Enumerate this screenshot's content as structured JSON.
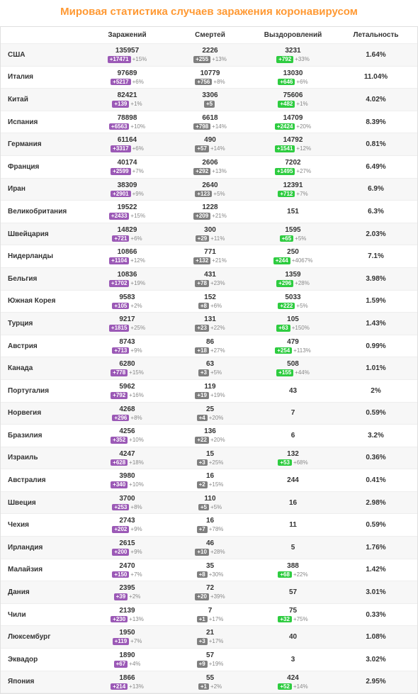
{
  "title": "Мировая статистика случаев заражения коронавирусом",
  "headers": {
    "country": "",
    "infected": "Заражений",
    "deaths": "Смертей",
    "recovered": "Выздоровлений",
    "lethality": "Летальность"
  },
  "colors": {
    "title": "#ff9933",
    "badge_infected": "#9b59b6",
    "badge_deaths": "#7f7f7f",
    "badge_recovered": "#2ecc40",
    "row_alt_bg": "#f7f7f7",
    "border": "#e0e0e0"
  },
  "rows": [
    {
      "country": "США",
      "infected": {
        "v": "135957",
        "d": "+17471",
        "p": "+15%"
      },
      "deaths": {
        "v": "2226",
        "d": "+255",
        "p": "+13%"
      },
      "recovered": {
        "v": "3231",
        "d": "+792",
        "p": "+33%"
      },
      "lethality": "1.64%"
    },
    {
      "country": "Италия",
      "infected": {
        "v": "97689",
        "d": "+5217",
        "p": "+6%"
      },
      "deaths": {
        "v": "10779",
        "d": "+756",
        "p": "+8%"
      },
      "recovered": {
        "v": "13030",
        "d": "+646",
        "p": "+6%"
      },
      "lethality": "11.04%"
    },
    {
      "country": "Китай",
      "infected": {
        "v": "82421",
        "d": "+139",
        "p": "+1%"
      },
      "deaths": {
        "v": "3306",
        "d": "+5",
        "p": ""
      },
      "recovered": {
        "v": "75606",
        "d": "+482",
        "p": "+1%"
      },
      "lethality": "4.02%"
    },
    {
      "country": "Испания",
      "infected": {
        "v": "78898",
        "d": "+6563",
        "p": "+10%"
      },
      "deaths": {
        "v": "6618",
        "d": "+798",
        "p": "+14%"
      },
      "recovered": {
        "v": "14709",
        "d": "+2424",
        "p": "+20%"
      },
      "lethality": "8.39%"
    },
    {
      "country": "Германия",
      "infected": {
        "v": "61164",
        "d": "+3317",
        "p": "+6%"
      },
      "deaths": {
        "v": "490",
        "d": "+57",
        "p": "+14%"
      },
      "recovered": {
        "v": "14792",
        "d": "+1541",
        "p": "+12%"
      },
      "lethality": "0.81%"
    },
    {
      "country": "Франция",
      "infected": {
        "v": "40174",
        "d": "+2599",
        "p": "+7%"
      },
      "deaths": {
        "v": "2606",
        "d": "+292",
        "p": "+13%"
      },
      "recovered": {
        "v": "7202",
        "d": "+1495",
        "p": "+27%"
      },
      "lethality": "6.49%"
    },
    {
      "country": "Иран",
      "infected": {
        "v": "38309",
        "d": "+2901",
        "p": "+9%"
      },
      "deaths": {
        "v": "2640",
        "d": "+123",
        "p": "+5%"
      },
      "recovered": {
        "v": "12391",
        "d": "+712",
        "p": "+7%"
      },
      "lethality": "6.9%"
    },
    {
      "country": "Великобритания",
      "infected": {
        "v": "19522",
        "d": "+2433",
        "p": "+15%"
      },
      "deaths": {
        "v": "1228",
        "d": "+209",
        "p": "+21%"
      },
      "recovered": {
        "v": "151"
      },
      "lethality": "6.3%"
    },
    {
      "country": "Швейцария",
      "infected": {
        "v": "14829",
        "d": "+721",
        "p": "+6%"
      },
      "deaths": {
        "v": "300",
        "d": "+29",
        "p": "+11%"
      },
      "recovered": {
        "v": "1595",
        "d": "+65",
        "p": "+5%"
      },
      "lethality": "2.03%"
    },
    {
      "country": "Нидерланды",
      "infected": {
        "v": "10866",
        "d": "+1104",
        "p": "+12%"
      },
      "deaths": {
        "v": "771",
        "d": "+132",
        "p": "+21%"
      },
      "recovered": {
        "v": "250",
        "d": "+244",
        "p": "+4067%"
      },
      "lethality": "7.1%"
    },
    {
      "country": "Бельгия",
      "infected": {
        "v": "10836",
        "d": "+1702",
        "p": "+19%"
      },
      "deaths": {
        "v": "431",
        "d": "+78",
        "p": "+23%"
      },
      "recovered": {
        "v": "1359",
        "d": "+296",
        "p": "+28%"
      },
      "lethality": "3.98%"
    },
    {
      "country": "Южная Корея",
      "infected": {
        "v": "9583",
        "d": "+105",
        "p": "+2%"
      },
      "deaths": {
        "v": "152",
        "d": "+8",
        "p": "+6%"
      },
      "recovered": {
        "v": "5033",
        "d": "+222",
        "p": "+5%"
      },
      "lethality": "1.59%"
    },
    {
      "country": "Турция",
      "infected": {
        "v": "9217",
        "d": "+1815",
        "p": "+25%"
      },
      "deaths": {
        "v": "131",
        "d": "+23",
        "p": "+22%"
      },
      "recovered": {
        "v": "105",
        "d": "+63",
        "p": "+150%"
      },
      "lethality": "1.43%"
    },
    {
      "country": "Австрия",
      "infected": {
        "v": "8743",
        "d": "+713",
        "p": "+9%"
      },
      "deaths": {
        "v": "86",
        "d": "+18",
        "p": "+27%"
      },
      "recovered": {
        "v": "479",
        "d": "+254",
        "p": "+113%"
      },
      "lethality": "0.99%"
    },
    {
      "country": "Канада",
      "infected": {
        "v": "6280",
        "d": "+778",
        "p": "+15%"
      },
      "deaths": {
        "v": "63",
        "d": "+3",
        "p": "+5%"
      },
      "recovered": {
        "v": "508",
        "d": "+155",
        "p": "+44%"
      },
      "lethality": "1.01%"
    },
    {
      "country": "Португалия",
      "infected": {
        "v": "5962",
        "d": "+792",
        "p": "+16%"
      },
      "deaths": {
        "v": "119",
        "d": "+19",
        "p": "+19%"
      },
      "recovered": {
        "v": "43"
      },
      "lethality": "2%"
    },
    {
      "country": "Норвегия",
      "infected": {
        "v": "4268",
        "d": "+296",
        "p": "+8%"
      },
      "deaths": {
        "v": "25",
        "d": "+4",
        "p": "+20%"
      },
      "recovered": {
        "v": "7"
      },
      "lethality": "0.59%"
    },
    {
      "country": "Бразилия",
      "infected": {
        "v": "4256",
        "d": "+352",
        "p": "+10%"
      },
      "deaths": {
        "v": "136",
        "d": "+22",
        "p": "+20%"
      },
      "recovered": {
        "v": "6"
      },
      "lethality": "3.2%"
    },
    {
      "country": "Израиль",
      "infected": {
        "v": "4247",
        "d": "+628",
        "p": "+18%"
      },
      "deaths": {
        "v": "15",
        "d": "+3",
        "p": "+25%"
      },
      "recovered": {
        "v": "132",
        "d": "+53",
        "p": "+68%"
      },
      "lethality": "0.36%"
    },
    {
      "country": "Австралия",
      "infected": {
        "v": "3980",
        "d": "+340",
        "p": "+10%"
      },
      "deaths": {
        "v": "16",
        "d": "+2",
        "p": "+15%"
      },
      "recovered": {
        "v": "244"
      },
      "lethality": "0.41%"
    },
    {
      "country": "Швеция",
      "infected": {
        "v": "3700",
        "d": "+253",
        "p": "+8%"
      },
      "deaths": {
        "v": "110",
        "d": "+5",
        "p": "+5%"
      },
      "recovered": {
        "v": "16"
      },
      "lethality": "2.98%"
    },
    {
      "country": "Чехия",
      "infected": {
        "v": "2743",
        "d": "+202",
        "p": "+9%"
      },
      "deaths": {
        "v": "16",
        "d": "+7",
        "p": "+78%"
      },
      "recovered": {
        "v": "11"
      },
      "lethality": "0.59%"
    },
    {
      "country": "Ирландия",
      "infected": {
        "v": "2615",
        "d": "+200",
        "p": "+9%"
      },
      "deaths": {
        "v": "46",
        "d": "+10",
        "p": "+28%"
      },
      "recovered": {
        "v": "5"
      },
      "lethality": "1.76%"
    },
    {
      "country": "Малайзия",
      "infected": {
        "v": "2470",
        "d": "+150",
        "p": "+7%"
      },
      "deaths": {
        "v": "35",
        "d": "+8",
        "p": "+30%"
      },
      "recovered": {
        "v": "388",
        "d": "+68",
        "p": "+22%"
      },
      "lethality": "1.42%"
    },
    {
      "country": "Дания",
      "infected": {
        "v": "2395",
        "d": "+39",
        "p": "+2%"
      },
      "deaths": {
        "v": "72",
        "d": "+20",
        "p": "+39%"
      },
      "recovered": {
        "v": "57"
      },
      "lethality": "3.01%"
    },
    {
      "country": "Чили",
      "infected": {
        "v": "2139",
        "d": "+230",
        "p": "+13%"
      },
      "deaths": {
        "v": "7",
        "d": "+1",
        "p": "+17%"
      },
      "recovered": {
        "v": "75",
        "d": "+32",
        "p": "+75%"
      },
      "lethality": "0.33%"
    },
    {
      "country": "Люксембург",
      "infected": {
        "v": "1950",
        "d": "+119",
        "p": "+7%"
      },
      "deaths": {
        "v": "21",
        "d": "+3",
        "p": "+17%"
      },
      "recovered": {
        "v": "40"
      },
      "lethality": "1.08%"
    },
    {
      "country": "Эквадор",
      "infected": {
        "v": "1890",
        "d": "+67",
        "p": "+4%"
      },
      "deaths": {
        "v": "57",
        "d": "+9",
        "p": "+19%"
      },
      "recovered": {
        "v": "3"
      },
      "lethality": "3.02%"
    },
    {
      "country": "Япония",
      "infected": {
        "v": "1866",
        "d": "+214",
        "p": "+13%"
      },
      "deaths": {
        "v": "55",
        "d": "+1",
        "p": "+2%"
      },
      "recovered": {
        "v": "424",
        "d": "+52",
        "p": "+14%"
      },
      "lethality": "2.95%"
    }
  ]
}
